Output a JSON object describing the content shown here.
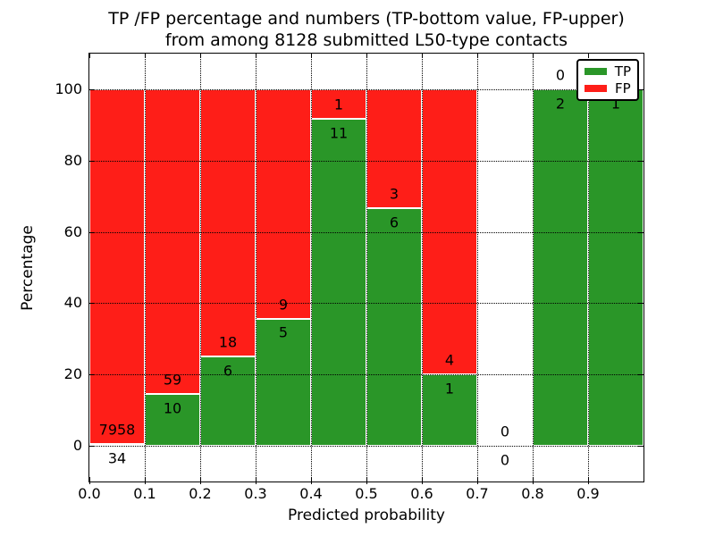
{
  "chart_data": {
    "type": "bar",
    "stacked": true,
    "normalized_to_percent": true,
    "title_lines": [
      "TP /FP percentage and numbers (TP-bottom value, FP-upper)",
      "from among 8128 submitted L50-type contacts"
    ],
    "xlabel": "Predicted probability",
    "ylabel": "Percentage",
    "xlim": [
      0.0,
      1.0
    ],
    "ylim": [
      -10,
      110
    ],
    "grid": true,
    "legend_position": "upper right",
    "legend": [
      {
        "label": "TP",
        "color": "#2a9628"
      },
      {
        "label": "FP",
        "color": "#fe1e18"
      }
    ],
    "xticks": [
      {
        "value": 0.0,
        "label": "0.0"
      },
      {
        "value": 0.1,
        "label": "0.1"
      },
      {
        "value": 0.2,
        "label": "0.2"
      },
      {
        "value": 0.3,
        "label": "0.3"
      },
      {
        "value": 0.4,
        "label": "0.4"
      },
      {
        "value": 0.5,
        "label": "0.5"
      },
      {
        "value": 0.6,
        "label": "0.6"
      },
      {
        "value": 0.7,
        "label": "0.7"
      },
      {
        "value": 0.8,
        "label": "0.8"
      },
      {
        "value": 0.9,
        "label": "0.9"
      }
    ],
    "yticks": [
      {
        "value": 0,
        "label": "0"
      },
      {
        "value": 20,
        "label": "20"
      },
      {
        "value": 40,
        "label": "40"
      },
      {
        "value": 60,
        "label": "60"
      },
      {
        "value": 80,
        "label": "80"
      },
      {
        "value": 100,
        "label": "100"
      }
    ],
    "bins": [
      {
        "range": [
          0.0,
          0.1
        ],
        "tp": 34,
        "fp": 7958,
        "tp_label": "34",
        "fp_label": "7958",
        "fp_label_visible": true
      },
      {
        "range": [
          0.1,
          0.2
        ],
        "tp": 10,
        "fp": 59,
        "tp_label": "10",
        "fp_label": "59",
        "fp_label_visible": true
      },
      {
        "range": [
          0.2,
          0.3
        ],
        "tp": 6,
        "fp": 18,
        "tp_label": "6",
        "fp_label": "18",
        "fp_label_visible": true
      },
      {
        "range": [
          0.3,
          0.4
        ],
        "tp": 5,
        "fp": 9,
        "tp_label": "5",
        "fp_label": "9",
        "fp_label_visible": true
      },
      {
        "range": [
          0.4,
          0.5
        ],
        "tp": 11,
        "fp": 1,
        "tp_label": "11",
        "fp_label": "1",
        "fp_label_visible": true
      },
      {
        "range": [
          0.5,
          0.6
        ],
        "tp": 6,
        "fp": 3,
        "tp_label": "6",
        "fp_label": "3",
        "fp_label_visible": true
      },
      {
        "range": [
          0.6,
          0.7
        ],
        "tp": 1,
        "fp": 4,
        "tp_label": "1",
        "fp_label": "4",
        "fp_label_visible": true
      },
      {
        "range": [
          0.7,
          0.8
        ],
        "tp": 0,
        "fp": 0,
        "tp_label": "0",
        "fp_label": "0",
        "fp_label_visible": true
      },
      {
        "range": [
          0.8,
          0.9
        ],
        "tp": 2,
        "fp": 0,
        "tp_label": "2",
        "fp_label": "0",
        "fp_label_visible": true
      },
      {
        "range": [
          0.9,
          1.0
        ],
        "tp": 1,
        "fp": 0,
        "tp_label": "1",
        "fp_label": null,
        "fp_label_visible": false
      }
    ]
  }
}
